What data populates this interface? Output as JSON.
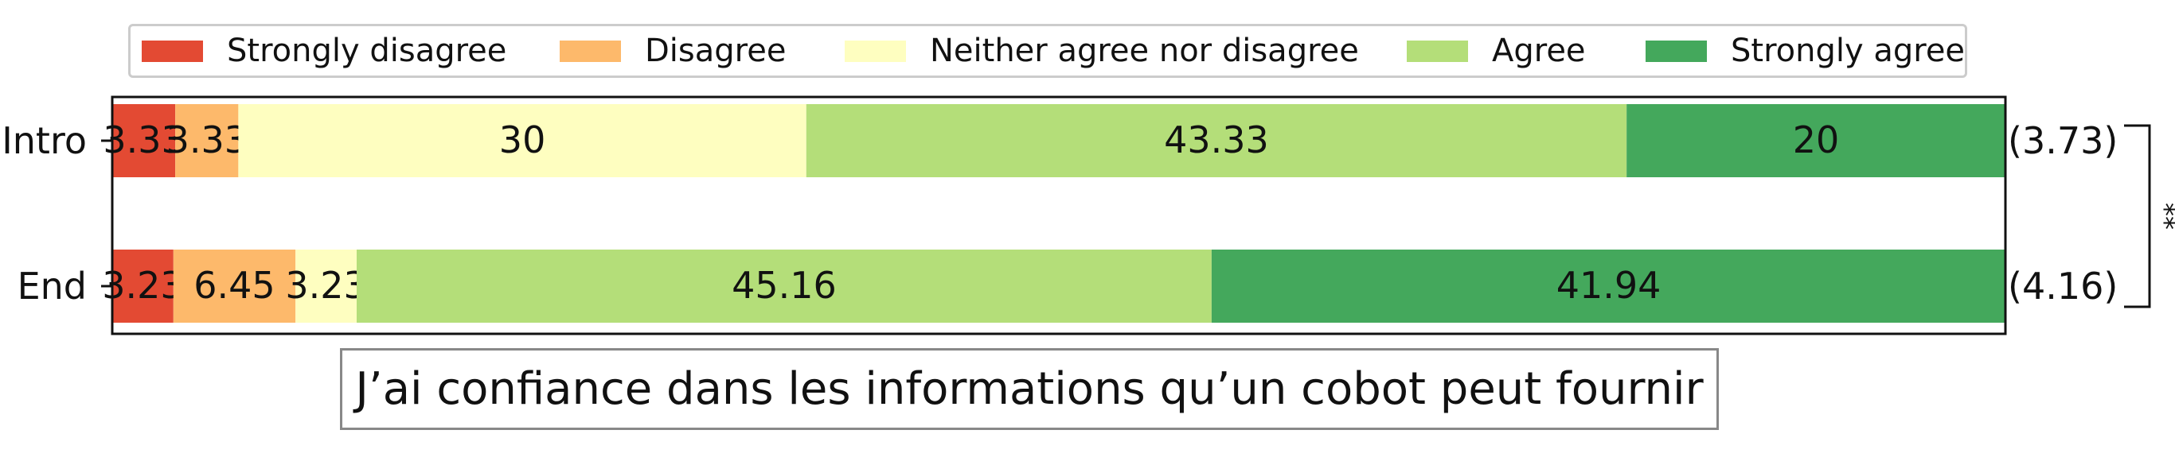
{
  "chart_data": {
    "type": "bar",
    "orientation": "horizontal",
    "stacked": true,
    "title": "J’ai confiance dans les informations qu’un cobot peut fournir",
    "categories": [
      "Intro",
      "End"
    ],
    "series": [
      {
        "name": "Strongly disagree",
        "color": "#e34a33",
        "values": [
          3.33,
          3.23
        ]
      },
      {
        "name": "Disagree",
        "color": "#fdb96b",
        "values": [
          3.33,
          6.45
        ]
      },
      {
        "name": "Neither agree nor disagree",
        "color": "#fefec0",
        "values": [
          30,
          3.23
        ]
      },
      {
        "name": "Agree",
        "color": "#b4de79",
        "values": [
          43.33,
          45.16
        ]
      },
      {
        "name": "Strongly agree",
        "color": "#44a85c",
        "values": [
          20,
          41.94
        ]
      }
    ],
    "data_labels": [
      [
        "3.33",
        "3.33",
        "30",
        "43.33",
        "20"
      ],
      [
        "3.23",
        "6.45",
        "3.23",
        "45.16",
        "41.94"
      ]
    ],
    "means": [
      "(3.73)",
      "(4.16)"
    ],
    "significance": "**",
    "xlim": [
      0,
      100
    ],
    "legend_position": "top",
    "grid": false
  }
}
